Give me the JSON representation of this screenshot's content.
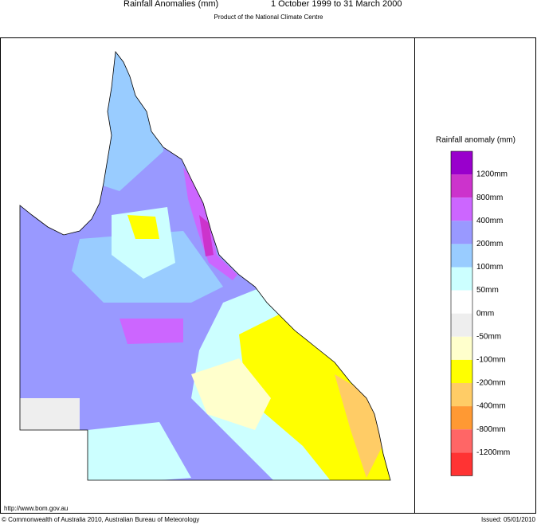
{
  "header": {
    "title": "Rainfall Anomalies (mm)",
    "period": "1 October 1999 to 31 March 2000",
    "subtitle": "Product of the National Climate Centre"
  },
  "legend": {
    "title": "Rainfall anomaly (mm)",
    "colors": [
      "#9900cc",
      "#cc33cc",
      "#cc66ff",
      "#9999ff",
      "#99ccff",
      "#ccffff",
      "#ffffff",
      "#eeeeee",
      "#ffffcc",
      "#ffff00",
      "#ffcc66",
      "#ff9933",
      "#ff6666",
      "#ff3333"
    ],
    "labels": [
      "1200mm",
      "800mm",
      "400mm",
      "200mm",
      "100mm",
      "50mm",
      "0mm",
      "-50mm",
      "-100mm",
      "-200mm",
      "-400mm",
      "-800mm",
      "-1200mm"
    ]
  },
  "footer": {
    "url": "http://www.bom.gov.au",
    "copyright": "© Commonwealth of Australia 2010, Australian Bureau of Meteorology",
    "issued": "Issued: 05/01/2010"
  }
}
